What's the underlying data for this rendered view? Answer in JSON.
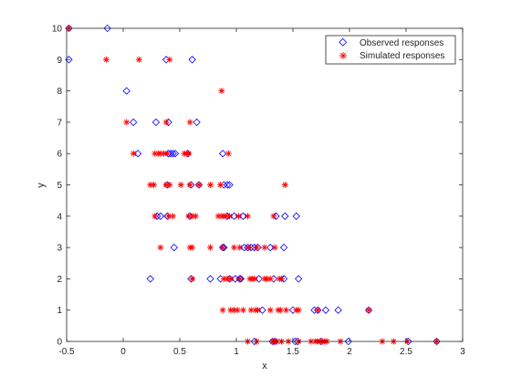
{
  "chart_data": {
    "type": "scatter",
    "xlabel": "x",
    "ylabel": "y",
    "xlim": [
      -0.5,
      3
    ],
    "ylim": [
      0,
      10
    ],
    "xticks": [
      -0.5,
      0,
      0.5,
      1,
      1.5,
      2,
      2.5,
      3
    ],
    "yticks": [
      0,
      1,
      2,
      3,
      4,
      5,
      6,
      7,
      8,
      9,
      10
    ],
    "xtick_labels": [
      "-0.5",
      "0",
      "0.5",
      "1",
      "1.5",
      "2",
      "2.5",
      "3"
    ],
    "ytick_labels": [
      "0",
      "1",
      "2",
      "3",
      "4",
      "5",
      "6",
      "7",
      "8",
      "9",
      "10"
    ],
    "grid": false,
    "legend_position": "top-right",
    "series": [
      {
        "name": "Observed responses",
        "marker": "diamond",
        "color": "#0000ff",
        "points": [
          [
            -0.48,
            10
          ],
          [
            -0.14,
            10
          ],
          [
            -0.48,
            9
          ],
          [
            0.38,
            9
          ],
          [
            0.61,
            9
          ],
          [
            0.03,
            8
          ],
          [
            0.09,
            7
          ],
          [
            0.29,
            7
          ],
          [
            0.4,
            7
          ],
          [
            0.65,
            7
          ],
          [
            0.13,
            6
          ],
          [
            0.4,
            6
          ],
          [
            0.42,
            6
          ],
          [
            0.44,
            6
          ],
          [
            0.46,
            6
          ],
          [
            0.57,
            6
          ],
          [
            0.88,
            6
          ],
          [
            0.39,
            5
          ],
          [
            0.6,
            5
          ],
          [
            0.67,
            5
          ],
          [
            0.89,
            5
          ],
          [
            0.92,
            5
          ],
          [
            0.94,
            5
          ],
          [
            0.3,
            4
          ],
          [
            0.33,
            4
          ],
          [
            0.39,
            4
          ],
          [
            0.59,
            4
          ],
          [
            0.92,
            4
          ],
          [
            0.98,
            4
          ],
          [
            1.06,
            4
          ],
          [
            1.35,
            4
          ],
          [
            1.43,
            4
          ],
          [
            1.53,
            4
          ],
          [
            0.45,
            3
          ],
          [
            0.88,
            3
          ],
          [
            0.89,
            3
          ],
          [
            1.07,
            3
          ],
          [
            1.1,
            3
          ],
          [
            1.13,
            3
          ],
          [
            1.16,
            3
          ],
          [
            1.19,
            3
          ],
          [
            1.3,
            3
          ],
          [
            1.42,
            3
          ],
          [
            0.24,
            2
          ],
          [
            0.6,
            2
          ],
          [
            0.77,
            2
          ],
          [
            0.86,
            2
          ],
          [
            0.94,
            2
          ],
          [
            0.99,
            2
          ],
          [
            1.03,
            2
          ],
          [
            1.04,
            2
          ],
          [
            1.2,
            2
          ],
          [
            1.33,
            2
          ],
          [
            1.42,
            2
          ],
          [
            1.55,
            2
          ],
          [
            1.23,
            1
          ],
          [
            1.5,
            1
          ],
          [
            1.69,
            1
          ],
          [
            1.72,
            1
          ],
          [
            1.79,
            1
          ],
          [
            1.9,
            1
          ],
          [
            2.17,
            1
          ],
          [
            1.16,
            0
          ],
          [
            1.32,
            0
          ],
          [
            1.34,
            0
          ],
          [
            1.52,
            0
          ],
          [
            1.54,
            0
          ],
          [
            1.75,
            0
          ],
          [
            1.99,
            0
          ],
          [
            2.52,
            0
          ],
          [
            2.77,
            0
          ]
        ]
      },
      {
        "name": "Simulated responses",
        "marker": "asterisk",
        "color": "#ff0000",
        "points": [
          [
            -0.48,
            10
          ],
          [
            -0.15,
            9
          ],
          [
            0.14,
            9
          ],
          [
            0.41,
            9
          ],
          [
            0.87,
            8
          ],
          [
            0.03,
            7
          ],
          [
            0.38,
            7
          ],
          [
            0.59,
            7
          ],
          [
            0.09,
            6
          ],
          [
            0.28,
            6
          ],
          [
            0.31,
            6
          ],
          [
            0.33,
            6
          ],
          [
            0.36,
            6
          ],
          [
            0.39,
            6
          ],
          [
            0.54,
            6
          ],
          [
            0.56,
            6
          ],
          [
            0.58,
            6
          ],
          [
            0.93,
            6
          ],
          [
            0.24,
            5
          ],
          [
            0.27,
            5
          ],
          [
            0.38,
            5
          ],
          [
            0.41,
            5
          ],
          [
            0.51,
            5
          ],
          [
            0.59,
            5
          ],
          [
            0.67,
            5
          ],
          [
            0.77,
            5
          ],
          [
            0.86,
            5
          ],
          [
            1.43,
            5
          ],
          [
            0.28,
            4
          ],
          [
            0.4,
            4
          ],
          [
            0.44,
            4
          ],
          [
            0.58,
            4
          ],
          [
            0.61,
            4
          ],
          [
            0.64,
            4
          ],
          [
            0.84,
            4
          ],
          [
            0.87,
            4
          ],
          [
            0.89,
            4
          ],
          [
            0.91,
            4
          ],
          [
            0.94,
            4
          ],
          [
            1.02,
            4
          ],
          [
            1.1,
            4
          ],
          [
            1.33,
            4
          ],
          [
            0.33,
            3
          ],
          [
            0.59,
            3
          ],
          [
            0.61,
            3
          ],
          [
            0.77,
            3
          ],
          [
            0.88,
            3
          ],
          [
            0.98,
            3
          ],
          [
            1.03,
            3
          ],
          [
            1.11,
            3
          ],
          [
            1.18,
            3
          ],
          [
            1.25,
            3
          ],
          [
            1.34,
            3
          ],
          [
            0.61,
            2
          ],
          [
            0.89,
            2
          ],
          [
            0.92,
            2
          ],
          [
            0.95,
            2
          ],
          [
            1.03,
            2
          ],
          [
            1.12,
            2
          ],
          [
            1.14,
            2
          ],
          [
            1.16,
            2
          ],
          [
            1.25,
            2
          ],
          [
            1.27,
            2
          ],
          [
            1.3,
            2
          ],
          [
            1.38,
            2
          ],
          [
            1.4,
            2
          ],
          [
            0.88,
            1
          ],
          [
            0.95,
            1
          ],
          [
            0.98,
            1
          ],
          [
            1.01,
            1
          ],
          [
            1.06,
            1
          ],
          [
            1.13,
            1
          ],
          [
            1.17,
            1
          ],
          [
            1.19,
            1
          ],
          [
            1.3,
            1
          ],
          [
            1.37,
            1
          ],
          [
            1.39,
            1
          ],
          [
            1.44,
            1
          ],
          [
            1.53,
            1
          ],
          [
            1.55,
            1
          ],
          [
            1.72,
            1
          ],
          [
            2.17,
            1
          ],
          [
            1.1,
            0
          ],
          [
            1.18,
            0
          ],
          [
            1.32,
            0
          ],
          [
            1.34,
            0
          ],
          [
            1.36,
            0
          ],
          [
            1.4,
            0
          ],
          [
            1.46,
            0
          ],
          [
            1.55,
            0
          ],
          [
            1.66,
            0
          ],
          [
            1.7,
            0
          ],
          [
            1.72,
            0
          ],
          [
            1.74,
            0
          ],
          [
            1.76,
            0
          ],
          [
            1.78,
            0
          ],
          [
            1.8,
            0
          ],
          [
            1.92,
            0
          ],
          [
            2.29,
            0
          ],
          [
            2.39,
            0
          ],
          [
            2.51,
            0
          ],
          [
            2.77,
            0
          ]
        ]
      }
    ]
  }
}
